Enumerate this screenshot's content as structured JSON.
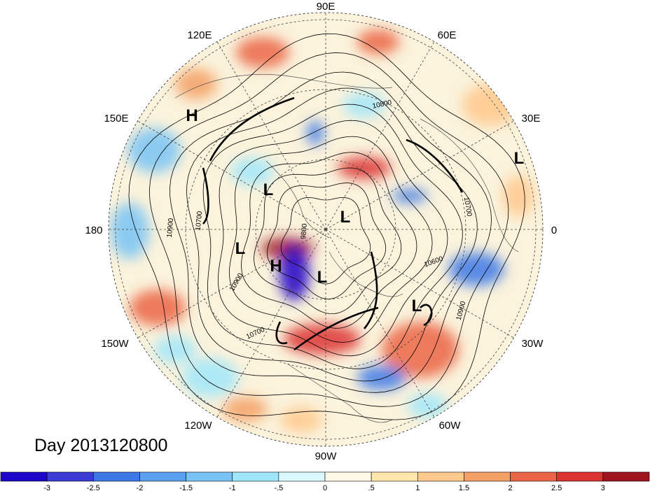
{
  "caption": "Day 2013120800",
  "longitude_labels": [
    {
      "text": "90E"
    },
    {
      "text": "60E"
    },
    {
      "text": "30E"
    },
    {
      "text": "0"
    },
    {
      "text": "30W"
    },
    {
      "text": "60W"
    },
    {
      "text": "90W"
    },
    {
      "text": "120W"
    },
    {
      "text": "150W"
    },
    {
      "text": "180"
    },
    {
      "text": "150E"
    },
    {
      "text": "120E"
    }
  ],
  "pressure_centers": [
    {
      "text": "H"
    },
    {
      "text": "L"
    },
    {
      "text": "L"
    },
    {
      "text": "L"
    },
    {
      "text": "L"
    },
    {
      "text": "H"
    },
    {
      "text": "L"
    },
    {
      "text": "L"
    }
  ],
  "contour_labels": [
    {
      "text": "10800"
    },
    {
      "text": "10700"
    },
    {
      "text": "10900"
    },
    {
      "text": "10700"
    },
    {
      "text": "9800"
    },
    {
      "text": "10600"
    },
    {
      "text": "10900"
    },
    {
      "text": "10700"
    },
    {
      "text": "10900"
    }
  ],
  "colorbar": {
    "colors": [
      "#1e06c8",
      "#3b3bd6",
      "#3c78e6",
      "#5aa0f0",
      "#78c3f5",
      "#a0e6fa",
      "#dcf8ff",
      "#fffae6",
      "#ffe6aa",
      "#ffc88c",
      "#f5a064",
      "#eb6446",
      "#dc3232",
      "#a0141e"
    ],
    "labels": [
      "-3",
      "-2.5",
      "-2",
      "-1.5",
      "-1",
      "-.5",
      "0",
      ".5",
      "1",
      "1.5",
      "2",
      "2.5",
      "3"
    ]
  },
  "colors": {
    "map_background": "#fbf3dc",
    "negative_accent": "#2c4fe0",
    "positive_accent": "#e0423a"
  }
}
